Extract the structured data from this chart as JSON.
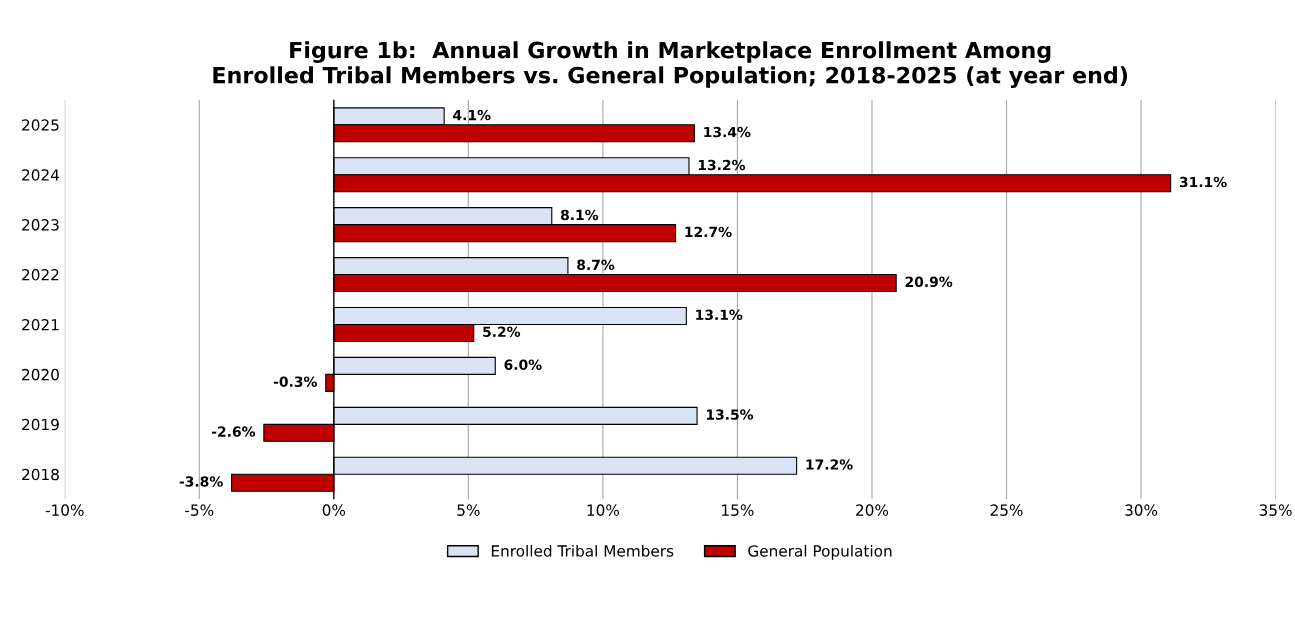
{
  "chart_data": {
    "type": "bar",
    "orientation": "horizontal",
    "title": "Figure 1b:  Annual Growth in Marketplace Enrollment Among\nEnrolled Tribal Members vs. General Population; 2018-2025 (at year end)",
    "categories": [
      "2025",
      "2024",
      "2023",
      "2022",
      "2021",
      "2020",
      "2019",
      "2018"
    ],
    "series": [
      {
        "name": "Enrolled Tribal Members",
        "color": "#dae3f3",
        "values": [
          4.1,
          13.2,
          8.1,
          8.7,
          13.1,
          6.0,
          13.5,
          17.2
        ],
        "value_labels": [
          "4.1%",
          "13.2%",
          "8.1%",
          "8.7%",
          "13.1%",
          "6.0%",
          "13.5%",
          "17.2%"
        ]
      },
      {
        "name": "General Population",
        "color": "#c00000",
        "values": [
          13.4,
          31.1,
          12.7,
          20.9,
          5.2,
          -0.3,
          -2.6,
          -3.8
        ],
        "value_labels": [
          "13.4%",
          "31.1%",
          "12.7%",
          "20.9%",
          "5.2%",
          "-0.3%",
          "-2.6%",
          "-3.8%"
        ]
      }
    ],
    "xlim": [
      -10,
      35
    ],
    "xticks": [
      {
        "value": -10,
        "label": "-10%"
      },
      {
        "value": -5,
        "label": "-5%"
      },
      {
        "value": 0,
        "label": "0%"
      },
      {
        "value": 5,
        "label": "5%"
      },
      {
        "value": 10,
        "label": "10%"
      },
      {
        "value": 15,
        "label": "15%"
      },
      {
        "value": 20,
        "label": "20%"
      },
      {
        "value": 25,
        "label": "25%"
      },
      {
        "value": 30,
        "label": "30%"
      },
      {
        "value": 35,
        "label": "35%"
      }
    ],
    "grid": "x",
    "legend": "bottom"
  }
}
